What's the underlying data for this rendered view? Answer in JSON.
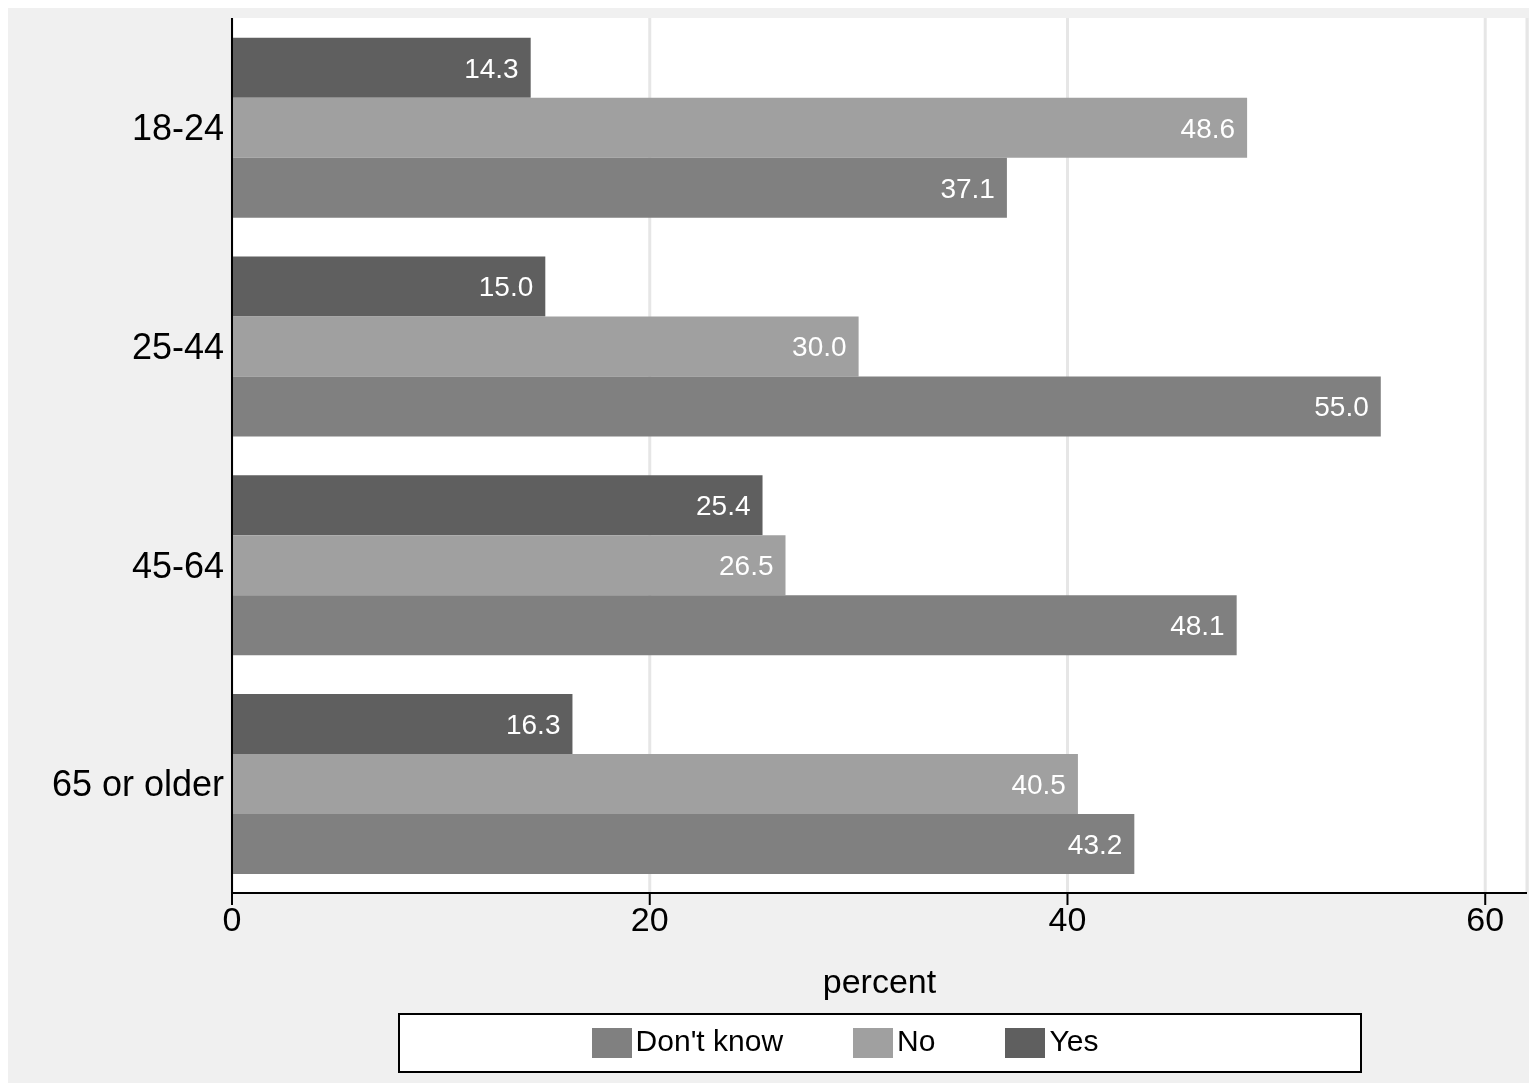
{
  "chart_data": {
    "type": "bar",
    "orientation": "horizontal",
    "categories": [
      "18-24",
      "25-44",
      "45-64",
      "65 or older"
    ],
    "series": [
      {
        "name": "Yes",
        "color": "#5f5f5f",
        "values": [
          14.3,
          15.0,
          25.4,
          16.3
        ],
        "value_labels": [
          "14.3",
          "15.0",
          "25.4",
          "16.3"
        ]
      },
      {
        "name": "No",
        "color": "#a0a0a0",
        "values": [
          48.6,
          30.0,
          26.5,
          40.5
        ],
        "value_labels": [
          "48.6",
          "30.0",
          "26.5",
          "40.5"
        ]
      },
      {
        "name": "Don't know",
        "color": "#808080",
        "values": [
          37.1,
          55.0,
          48.1,
          43.2
        ],
        "value_labels": [
          "37.1",
          "55.0",
          "48.1",
          "43.2"
        ]
      }
    ],
    "xlabel": "percent",
    "xlim": [
      0,
      62
    ],
    "xticks": [
      0,
      20,
      40,
      60
    ],
    "grid": "x",
    "legend": "bottom"
  }
}
